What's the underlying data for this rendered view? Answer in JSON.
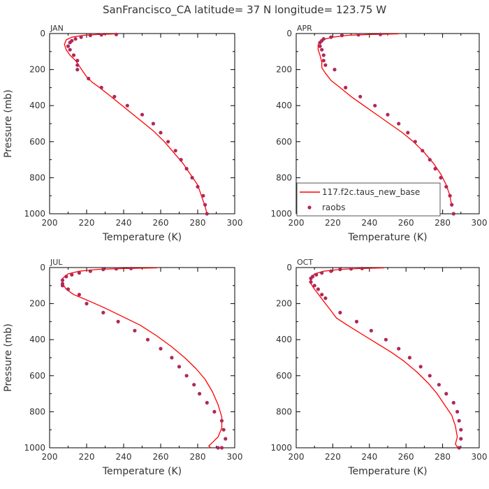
{
  "title": "SanFrancisco_CA  latitude= 37 N longitude= 123.75 W",
  "colors": {
    "model": "#ff0000",
    "obs": "#b0285a"
  },
  "legend": {
    "model_label": "117.f2c.taus_new_base",
    "obs_label": "raobs"
  },
  "chart_data": [
    {
      "type": "line",
      "panel": "JAN",
      "xlabel": "Temperature (K)",
      "ylabel": "Pressure (mb)",
      "xlim": [
        200,
        300
      ],
      "ylim": [
        1000,
        0
      ],
      "xticks": [
        200,
        220,
        240,
        260,
        280,
        300
      ],
      "yticks": [
        0,
        200,
        400,
        600,
        800,
        1000
      ],
      "series": [
        {
          "kind": "model",
          "x": [
            236,
            226,
            218,
            212,
            209,
            208,
            209,
            211,
            214,
            216,
            218,
            220,
            223,
            227,
            232,
            238,
            244,
            250,
            256,
            262,
            267,
            272,
            276,
            280,
            282,
            284,
            285
          ],
          "y": [
            2,
            5,
            10,
            20,
            35,
            60,
            90,
            120,
            150,
            180,
            210,
            240,
            270,
            300,
            340,
            390,
            440,
            490,
            540,
            600,
            660,
            720,
            780,
            840,
            900,
            960,
            1000
          ]
        },
        {
          "kind": "obs",
          "x": [
            236,
            228,
            222,
            217,
            214,
            212,
            211,
            210,
            211,
            213,
            215,
            215,
            215,
            221,
            228,
            235,
            242,
            250,
            256,
            260,
            264,
            268,
            271,
            274,
            277,
            280,
            283,
            284,
            285
          ],
          "y": [
            5,
            7,
            10,
            20,
            30,
            40,
            50,
            70,
            90,
            120,
            150,
            175,
            200,
            250,
            300,
            350,
            400,
            450,
            500,
            550,
            600,
            650,
            700,
            750,
            800,
            850,
            900,
            950,
            1000
          ]
        }
      ]
    },
    {
      "type": "line",
      "panel": "APR",
      "xlabel": "Temperature (K)",
      "ylabel": "",
      "xlim": [
        200,
        300
      ],
      "ylim": [
        1000,
        0
      ],
      "xticks": [
        200,
        220,
        240,
        260,
        280,
        300
      ],
      "yticks": [
        0,
        200,
        400,
        600,
        800,
        1000
      ],
      "series": [
        {
          "kind": "model",
          "x": [
            256,
            240,
            228,
            220,
            214,
            212,
            212,
            213,
            214,
            214,
            216,
            219,
            224,
            230,
            237,
            244,
            251,
            258,
            264,
            270,
            275,
            279,
            282,
            284,
            285
          ],
          "y": [
            2,
            5,
            10,
            20,
            35,
            60,
            90,
            120,
            160,
            190,
            220,
            260,
            300,
            350,
            400,
            450,
            500,
            550,
            600,
            660,
            720,
            780,
            840,
            900,
            960
          ]
        },
        {
          "kind": "obs",
          "x": [
            246,
            234,
            225,
            219,
            215,
            214,
            213,
            213,
            214,
            215,
            215,
            216,
            221,
            227,
            235,
            243,
            250,
            256,
            261,
            265,
            269,
            273,
            276,
            279,
            282,
            284,
            285,
            286
          ],
          "y": [
            5,
            7,
            10,
            20,
            30,
            40,
            50,
            70,
            90,
            120,
            150,
            175,
            200,
            300,
            350,
            400,
            450,
            500,
            550,
            600,
            650,
            700,
            750,
            800,
            850,
            900,
            950,
            1000
          ]
        }
      ]
    },
    {
      "type": "line",
      "panel": "JUL",
      "xlabel": "Temperature (K)",
      "ylabel": "Pressure (mb)",
      "xlim": [
        200,
        300
      ],
      "ylim": [
        1000,
        0
      ],
      "xticks": [
        200,
        220,
        240,
        260,
        280,
        300
      ],
      "yticks": [
        0,
        200,
        400,
        600,
        800,
        1000
      ],
      "series": [
        {
          "kind": "model",
          "x": [
            258,
            240,
            226,
            216,
            210,
            207,
            207,
            209,
            213,
            220,
            229,
            239,
            249,
            258,
            266,
            273,
            279,
            284,
            288,
            291,
            293,
            293,
            291,
            288,
            286,
            287
          ],
          "y": [
            2,
            5,
            10,
            20,
            35,
            60,
            90,
            120,
            150,
            180,
            220,
            270,
            320,
            380,
            440,
            500,
            560,
            620,
            690,
            760,
            830,
            890,
            940,
            970,
            990,
            1000
          ]
        },
        {
          "kind": "obs",
          "x": [
            244,
            236,
            229,
            222,
            216,
            212,
            209,
            207,
            207,
            207,
            210,
            216,
            220,
            229,
            237,
            246,
            253,
            260,
            266,
            270,
            274,
            278,
            281,
            285,
            289,
            293,
            294,
            295,
            293,
            291
          ],
          "y": [
            5,
            7,
            10,
            20,
            30,
            40,
            50,
            70,
            90,
            100,
            120,
            150,
            200,
            250,
            300,
            350,
            400,
            450,
            500,
            550,
            600,
            650,
            700,
            750,
            800,
            850,
            900,
            950,
            1000,
            1000
          ]
        }
      ]
    },
    {
      "type": "line",
      "panel": "OCT",
      "xlabel": "Temperature (K)",
      "ylabel": "",
      "xlim": [
        200,
        300
      ],
      "ylim": [
        1000,
        0
      ],
      "xticks": [
        200,
        220,
        240,
        260,
        280,
        300
      ],
      "yticks": [
        0,
        200,
        400,
        600,
        800,
        1000
      ],
      "series": [
        {
          "kind": "model",
          "x": [
            248,
            235,
            224,
            215,
            210,
            208,
            208,
            210,
            213,
            216,
            219,
            222,
            228,
            236,
            244,
            252,
            259,
            266,
            272,
            277,
            281,
            285,
            287,
            288,
            287,
            288,
            289
          ],
          "y": [
            2,
            5,
            10,
            20,
            35,
            60,
            90,
            120,
            160,
            200,
            240,
            280,
            320,
            370,
            420,
            470,
            520,
            580,
            640,
            700,
            760,
            820,
            880,
            940,
            980,
            995,
            1000
          ]
        },
        {
          "kind": "obs",
          "x": [
            236,
            230,
            224,
            219,
            214,
            211,
            209,
            208,
            208,
            210,
            212,
            214,
            216,
            224,
            233,
            241,
            249,
            256,
            262,
            268,
            273,
            278,
            282,
            286,
            288,
            289,
            290,
            290,
            289
          ],
          "y": [
            5,
            7,
            10,
            20,
            30,
            40,
            50,
            60,
            80,
            100,
            120,
            150,
            170,
            250,
            300,
            350,
            400,
            450,
            500,
            550,
            600,
            650,
            700,
            750,
            800,
            850,
            900,
            950,
            1000
          ]
        }
      ]
    }
  ]
}
